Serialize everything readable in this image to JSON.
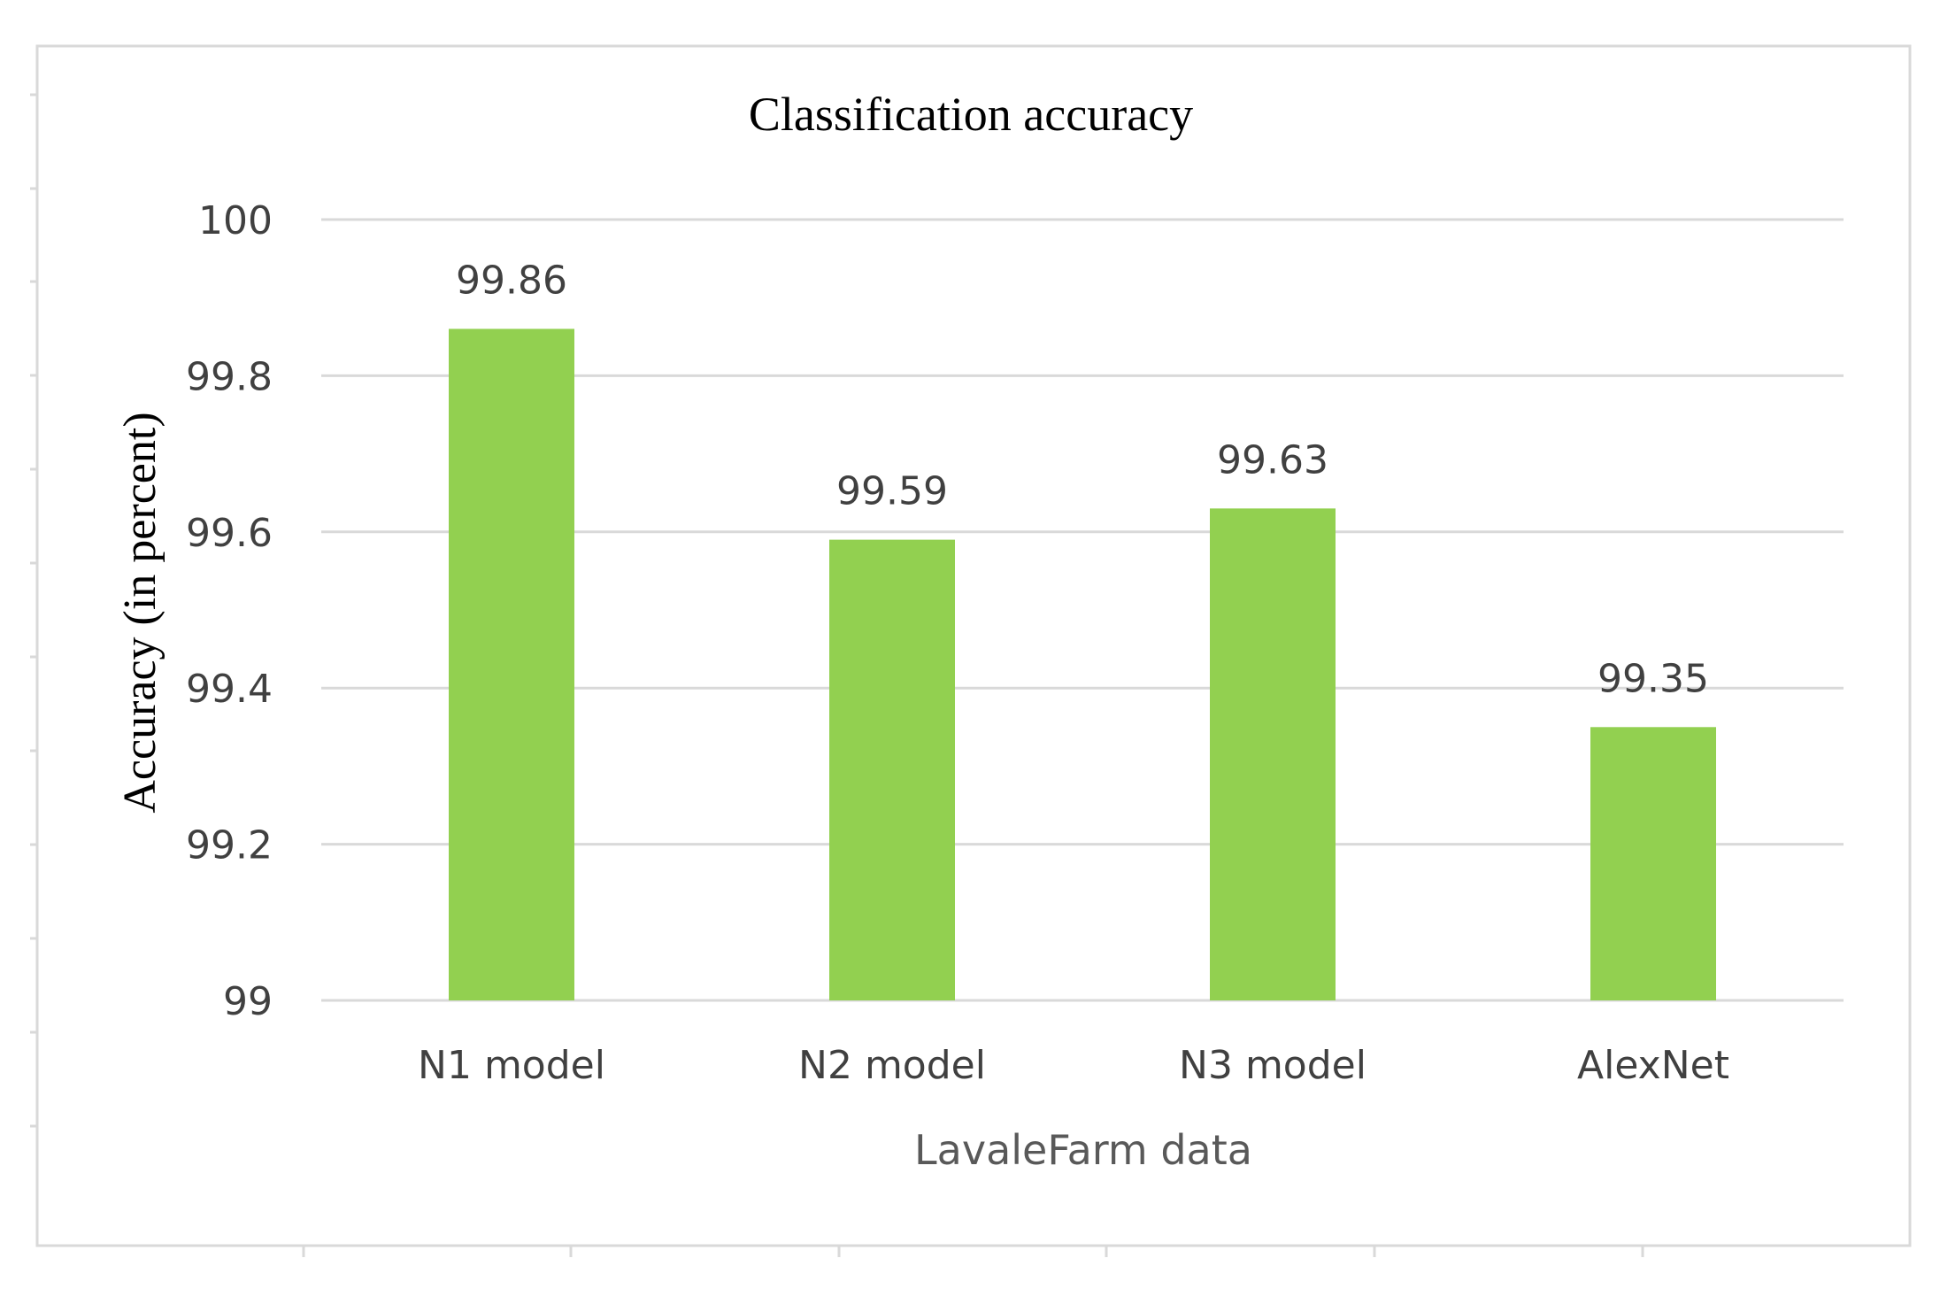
{
  "chart_data": {
    "type": "bar",
    "title": "Classification accuracy",
    "xlabel": "LavaleFarm data",
    "ylabel": "Accuracy (in percent)",
    "categories": [
      "N1 model",
      "N2 model",
      "N3 model",
      "AlexNet"
    ],
    "values": [
      99.86,
      99.59,
      99.63,
      99.35
    ],
    "data_labels": [
      "99.86",
      "99.59",
      "99.63",
      "99.35"
    ],
    "ylim": [
      99,
      100
    ],
    "yticks": [
      99,
      99.2,
      99.4,
      99.6,
      99.8,
      100
    ],
    "ytick_labels": [
      "99",
      "99.2",
      "99.4",
      "99.6",
      "99.8",
      "100"
    ],
    "grid": true,
    "legend": "none",
    "colors": {
      "bar": "#92D050",
      "grid": "#D9D9D9",
      "frame": "#D9D9D9",
      "text": "#404040",
      "axis_title": "#595959",
      "title": "#000000"
    }
  }
}
